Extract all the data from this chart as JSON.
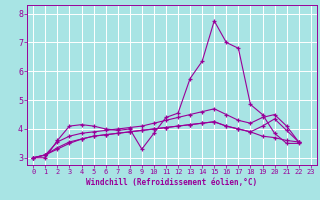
{
  "xlabel": "Windchill (Refroidissement éolien,°C)",
  "background_color": "#a8e4e4",
  "grid_color": "#ffffff",
  "line_color": "#990099",
  "xlim": [
    -0.5,
    23.5
  ],
  "ylim": [
    2.75,
    8.3
  ],
  "xticks": [
    0,
    1,
    2,
    3,
    4,
    5,
    6,
    7,
    8,
    9,
    10,
    11,
    12,
    13,
    14,
    15,
    16,
    17,
    18,
    19,
    20,
    21,
    22,
    23
  ],
  "yticks": [
    3,
    4,
    5,
    6,
    7,
    8
  ],
  "series": [
    [
      3.0,
      3.0,
      3.6,
      4.1,
      4.15,
      4.1,
      4.0,
      3.95,
      4.0,
      3.3,
      3.85,
      4.4,
      4.55,
      5.75,
      6.35,
      7.75,
      7.0,
      6.8,
      4.85,
      4.5,
      3.85,
      3.5,
      3.5
    ],
    [
      3.0,
      3.1,
      3.55,
      3.75,
      3.85,
      3.9,
      3.95,
      4.0,
      4.05,
      4.1,
      4.2,
      4.3,
      4.4,
      4.5,
      4.6,
      4.7,
      4.5,
      4.3,
      4.2,
      4.4,
      4.5,
      4.1,
      3.55
    ],
    [
      3.0,
      3.1,
      3.3,
      3.5,
      3.65,
      3.75,
      3.8,
      3.85,
      3.9,
      3.95,
      4.0,
      4.05,
      4.1,
      4.15,
      4.2,
      4.25,
      4.1,
      4.0,
      3.9,
      4.1,
      4.35,
      3.95,
      3.55
    ],
    [
      3.0,
      3.1,
      3.35,
      3.55,
      3.65,
      3.75,
      3.8,
      3.85,
      3.9,
      3.95,
      4.0,
      4.05,
      4.1,
      4.15,
      4.2,
      4.25,
      4.1,
      4.0,
      3.9,
      3.75,
      3.7,
      3.6,
      3.55
    ]
  ],
  "x_values": [
    0,
    1,
    2,
    3,
    4,
    5,
    6,
    7,
    8,
    9,
    10,
    11,
    12,
    13,
    14,
    15,
    16,
    17,
    18,
    19,
    20,
    21,
    22
  ]
}
